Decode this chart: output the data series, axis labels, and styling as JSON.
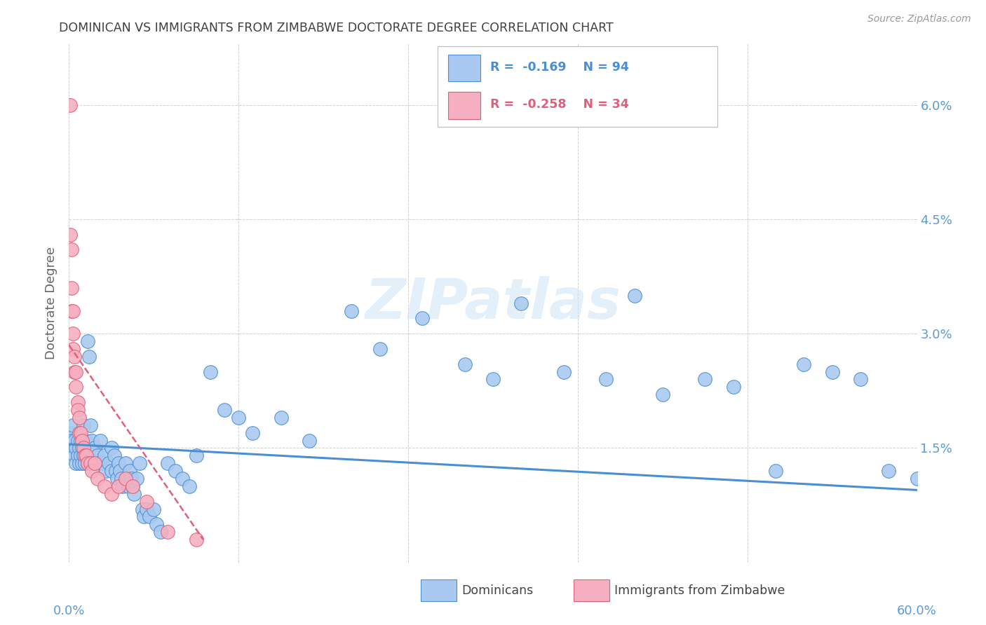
{
  "title": "DOMINICAN VS IMMIGRANTS FROM ZIMBABWE DOCTORATE DEGREE CORRELATION CHART",
  "source": "Source: ZipAtlas.com",
  "ylabel": "Doctorate Degree",
  "yticks": [
    0.0,
    0.015,
    0.03,
    0.045,
    0.06
  ],
  "ytick_labels": [
    "",
    "1.5%",
    "3.0%",
    "4.5%",
    "6.0%"
  ],
  "xlim": [
    0.0,
    0.6
  ],
  "ylim": [
    0.0,
    0.068
  ],
  "blue_color": "#aac9f0",
  "pink_color": "#f5afc0",
  "line_blue": "#4a8fd4",
  "line_pink": "#e0607a",
  "axis_color": "#5b9bd5",
  "watermark": "ZIPatlas",
  "dominicans_x": [
    0.001,
    0.002,
    0.003,
    0.003,
    0.004,
    0.004,
    0.005,
    0.005,
    0.006,
    0.006,
    0.007,
    0.007,
    0.008,
    0.008,
    0.009,
    0.009,
    0.01,
    0.01,
    0.01,
    0.011,
    0.011,
    0.012,
    0.012,
    0.013,
    0.013,
    0.014,
    0.014,
    0.015,
    0.016,
    0.016,
    0.017,
    0.018,
    0.019,
    0.02,
    0.021,
    0.022,
    0.023,
    0.025,
    0.026,
    0.028,
    0.03,
    0.03,
    0.032,
    0.033,
    0.034,
    0.035,
    0.036,
    0.037,
    0.038,
    0.04,
    0.041,
    0.042,
    0.043,
    0.044,
    0.045,
    0.046,
    0.048,
    0.05,
    0.052,
    0.053,
    0.055,
    0.057,
    0.06,
    0.062,
    0.065,
    0.07,
    0.075,
    0.08,
    0.085,
    0.09,
    0.1,
    0.11,
    0.12,
    0.13,
    0.15,
    0.17,
    0.2,
    0.22,
    0.25,
    0.28,
    0.3,
    0.32,
    0.35,
    0.38,
    0.4,
    0.42,
    0.45,
    0.47,
    0.5,
    0.52,
    0.54,
    0.56,
    0.58,
    0.6
  ],
  "dominicans_y": [
    0.017,
    0.016,
    0.015,
    0.018,
    0.014,
    0.016,
    0.013,
    0.015,
    0.016,
    0.014,
    0.013,
    0.015,
    0.014,
    0.016,
    0.013,
    0.015,
    0.016,
    0.018,
    0.014,
    0.015,
    0.013,
    0.016,
    0.014,
    0.029,
    0.013,
    0.027,
    0.015,
    0.018,
    0.014,
    0.016,
    0.013,
    0.015,
    0.013,
    0.014,
    0.013,
    0.016,
    0.013,
    0.014,
    0.012,
    0.013,
    0.015,
    0.012,
    0.014,
    0.012,
    0.011,
    0.013,
    0.012,
    0.011,
    0.01,
    0.013,
    0.011,
    0.01,
    0.012,
    0.011,
    0.01,
    0.009,
    0.011,
    0.013,
    0.007,
    0.006,
    0.007,
    0.006,
    0.007,
    0.005,
    0.004,
    0.013,
    0.012,
    0.011,
    0.01,
    0.014,
    0.025,
    0.02,
    0.019,
    0.017,
    0.019,
    0.016,
    0.033,
    0.028,
    0.032,
    0.026,
    0.024,
    0.034,
    0.025,
    0.024,
    0.035,
    0.022,
    0.024,
    0.023,
    0.012,
    0.026,
    0.025,
    0.024,
    0.012,
    0.011
  ],
  "zimbabwe_x": [
    0.001,
    0.001,
    0.002,
    0.002,
    0.002,
    0.003,
    0.003,
    0.003,
    0.004,
    0.004,
    0.005,
    0.005,
    0.006,
    0.006,
    0.007,
    0.007,
    0.008,
    0.009,
    0.01,
    0.011,
    0.012,
    0.013,
    0.015,
    0.016,
    0.018,
    0.02,
    0.025,
    0.03,
    0.035,
    0.04,
    0.045,
    0.055,
    0.07,
    0.09
  ],
  "zimbabwe_y": [
    0.06,
    0.043,
    0.041,
    0.036,
    0.033,
    0.033,
    0.03,
    0.028,
    0.027,
    0.025,
    0.025,
    0.023,
    0.021,
    0.02,
    0.019,
    0.017,
    0.017,
    0.016,
    0.015,
    0.014,
    0.014,
    0.013,
    0.013,
    0.012,
    0.013,
    0.011,
    0.01,
    0.009,
    0.01,
    0.011,
    0.01,
    0.008,
    0.004,
    0.003
  ],
  "blue_trend_x": [
    0.0,
    0.6
  ],
  "blue_trend_y": [
    0.0155,
    0.0095
  ],
  "pink_trend_x": [
    0.0,
    0.095
  ],
  "pink_trend_y": [
    0.0285,
    0.003
  ]
}
